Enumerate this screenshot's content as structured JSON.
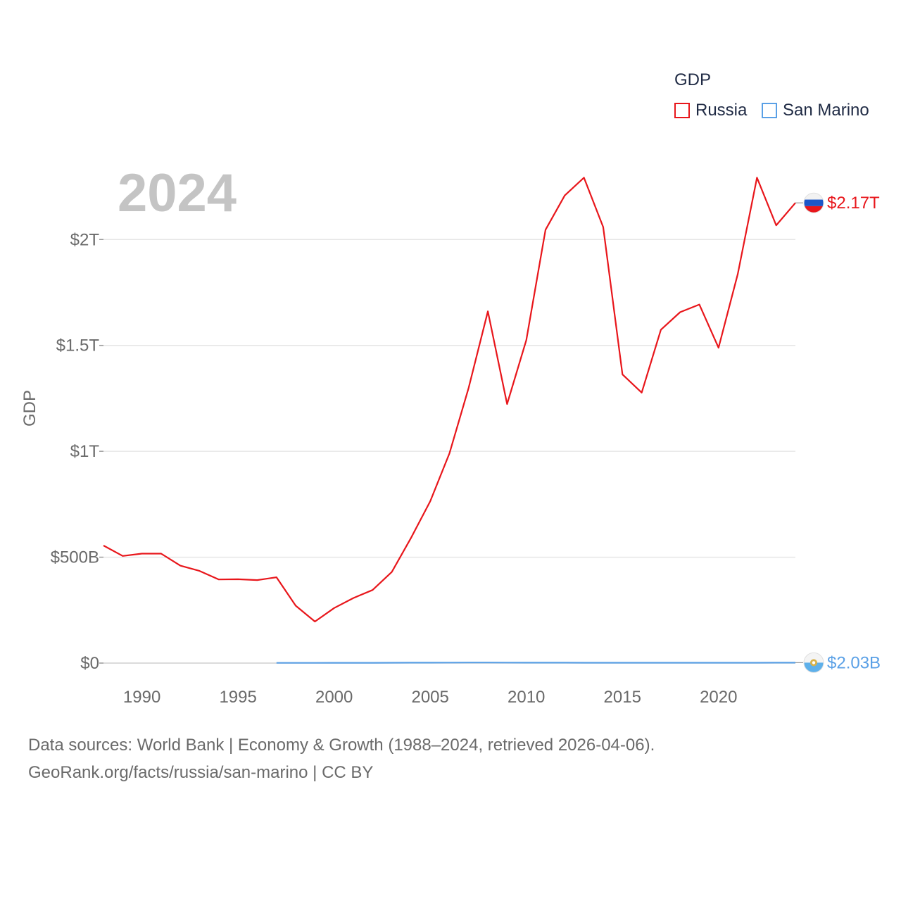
{
  "legend": {
    "title": "GDP",
    "items": [
      {
        "label": "Russia",
        "color": "#e8161b"
      },
      {
        "label": "San Marino",
        "color": "#5aa0e6"
      }
    ]
  },
  "footer": {
    "line1": "Data sources: World Bank | Economy & Growth (1988–2024, retrieved 2026-04-06).",
    "line2": "GeoRank.org/facts/russia/san-marino | CC BY"
  },
  "chart_data": {
    "type": "line",
    "title": "",
    "year_label": "2024",
    "xlabel": "",
    "ylabel": "GDP",
    "xlim": [
      1988,
      2024
    ],
    "ylim": [
      0,
      2.3
    ],
    "x_ticks": [
      1990,
      1995,
      2000,
      2005,
      2010,
      2015,
      2020
    ],
    "y_ticks": [
      {
        "value": 0,
        "label": "$0"
      },
      {
        "value": 0.5,
        "label": "$500B"
      },
      {
        "value": 1,
        "label": "$1T"
      },
      {
        "value": 1.5,
        "label": "$1.5T"
      },
      {
        "value": 2,
        "label": "$2T"
      }
    ],
    "units": "trillions of US$",
    "series": [
      {
        "name": "Russia",
        "color": "#e8161b",
        "end_label": "$2.17T",
        "points": [
          [
            1988,
            0.555
          ],
          [
            1989,
            0.506
          ],
          [
            1990,
            0.517
          ],
          [
            1991,
            0.517
          ],
          [
            1992,
            0.46
          ],
          [
            1993,
            0.435
          ],
          [
            1994,
            0.395
          ],
          [
            1995,
            0.396
          ],
          [
            1996,
            0.392
          ],
          [
            1997,
            0.405
          ],
          [
            1998,
            0.271
          ],
          [
            1999,
            0.196
          ],
          [
            2000,
            0.26
          ],
          [
            2001,
            0.307
          ],
          [
            2002,
            0.345
          ],
          [
            2003,
            0.43
          ],
          [
            2004,
            0.591
          ],
          [
            2005,
            0.764
          ],
          [
            2006,
            0.99
          ],
          [
            2007,
            1.3
          ],
          [
            2008,
            1.661
          ],
          [
            2009,
            1.223
          ],
          [
            2010,
            1.525
          ],
          [
            2011,
            2.046
          ],
          [
            2012,
            2.208
          ],
          [
            2013,
            2.292
          ],
          [
            2014,
            2.059
          ],
          [
            2015,
            1.363
          ],
          [
            2016,
            1.277
          ],
          [
            2017,
            1.574
          ],
          [
            2018,
            1.657
          ],
          [
            2019,
            1.693
          ],
          [
            2020,
            1.489
          ],
          [
            2021,
            1.837
          ],
          [
            2022,
            2.292
          ],
          [
            2023,
            2.067
          ],
          [
            2024,
            2.173
          ]
        ]
      },
      {
        "name": "San Marino",
        "color": "#5aa0e6",
        "end_label": "$2.03B",
        "points": [
          [
            1997,
            0.00098
          ],
          [
            1998,
            0.001
          ],
          [
            1999,
            0.0011
          ],
          [
            2000,
            0.0012
          ],
          [
            2001,
            0.0013
          ],
          [
            2002,
            0.0014
          ],
          [
            2003,
            0.0017
          ],
          [
            2004,
            0.0019
          ],
          [
            2005,
            0.002
          ],
          [
            2006,
            0.0022
          ],
          [
            2007,
            0.0025
          ],
          [
            2008,
            0.0028
          ],
          [
            2009,
            0.0023
          ],
          [
            2010,
            0.002
          ],
          [
            2011,
            0.0021
          ],
          [
            2012,
            0.0019
          ],
          [
            2013,
            0.0018
          ],
          [
            2014,
            0.0018
          ],
          [
            2015,
            0.0015
          ],
          [
            2016,
            0.0015
          ],
          [
            2017,
            0.0015
          ],
          [
            2018,
            0.0016
          ],
          [
            2019,
            0.0016
          ],
          [
            2020,
            0.0015
          ],
          [
            2021,
            0.0018
          ],
          [
            2022,
            0.0018
          ],
          [
            2023,
            0.002
          ],
          [
            2024,
            0.00203
          ]
        ]
      }
    ]
  }
}
